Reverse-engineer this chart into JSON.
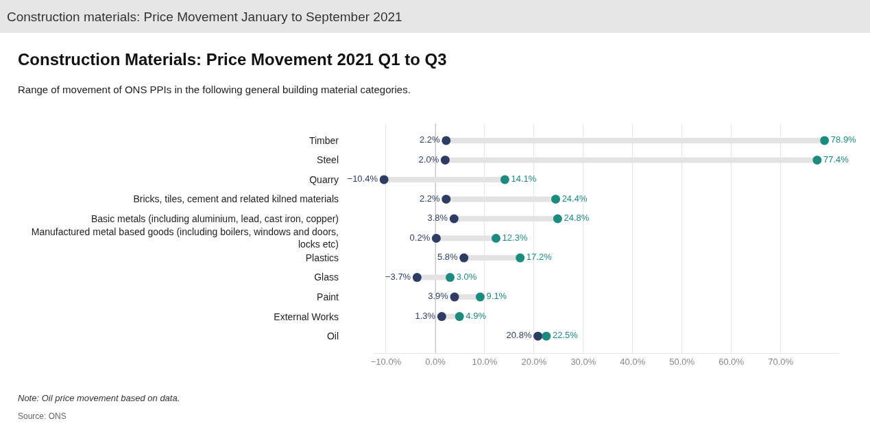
{
  "chart_data": {
    "type": "scatter",
    "title": "Construction materials: Price Movement January to September 2021",
    "subtitle": "Construction Materials: Price Movement 2021 Q1 to Q3",
    "annotations": [
      "Range of movement of ONS PPIs in the following general building material categories.",
      "Note: Oil price movement based on data.",
      "Source: ONS"
    ],
    "categories": [
      "Timber",
      "Steel",
      "Quarry",
      "Bricks, tiles, cement and related kilned materials",
      "Basic metals (including aluminium, lead, cast iron, copper)",
      "Manufactured metal based goods (including boilers, windows and doors, locks etc)",
      "Plastics",
      "Glass",
      "Paint",
      "External Works",
      "Oil"
    ],
    "series": [
      {
        "color": "#2e3b63",
        "values": [
          2.2,
          2.0,
          -10.4,
          2.2,
          3.8,
          0.2,
          5.8,
          -3.7,
          3.9,
          1.3,
          20.8
        ],
        "value_labels": [
          "2.2%",
          "2.0%",
          "−10.4%",
          "2.2%",
          "3.8%",
          "0.2%",
          "5.8%",
          "−3.7%",
          "3.9%",
          "1.3%",
          "20.8%"
        ]
      },
      {
        "color": "#1d8a80",
        "values": [
          78.9,
          77.4,
          14.1,
          24.4,
          24.8,
          12.3,
          17.2,
          3.0,
          9.1,
          4.9,
          22.5
        ],
        "value_labels": [
          "78.9%",
          "77.4%",
          "14.1%",
          "24.4%",
          "24.8%",
          "12.3%",
          "17.2%",
          "3.0%",
          "9.1%",
          "4.9%",
          "22.5%"
        ]
      }
    ],
    "xlim": [
      -12.5,
      82
    ],
    "xticks": [
      {
        "value": -10,
        "label": "−10.0%"
      },
      {
        "value": 0,
        "label": "0.0%"
      },
      {
        "value": 10,
        "label": "10.0%"
      },
      {
        "value": 20,
        "label": "20.0%"
      },
      {
        "value": 30,
        "label": "30.0%"
      },
      {
        "value": 40,
        "label": "40.0%"
      },
      {
        "value": 50,
        "label": "50.0%"
      },
      {
        "value": 60,
        "label": "60.0%"
      },
      {
        "value": 70,
        "label": "70.0%"
      }
    ],
    "ref_lines": [
      {
        "axis": "x",
        "value": 0,
        "color": "#b0b0b0"
      }
    ],
    "orientation": "horizontal",
    "grid": "x",
    "marker": "circle"
  }
}
